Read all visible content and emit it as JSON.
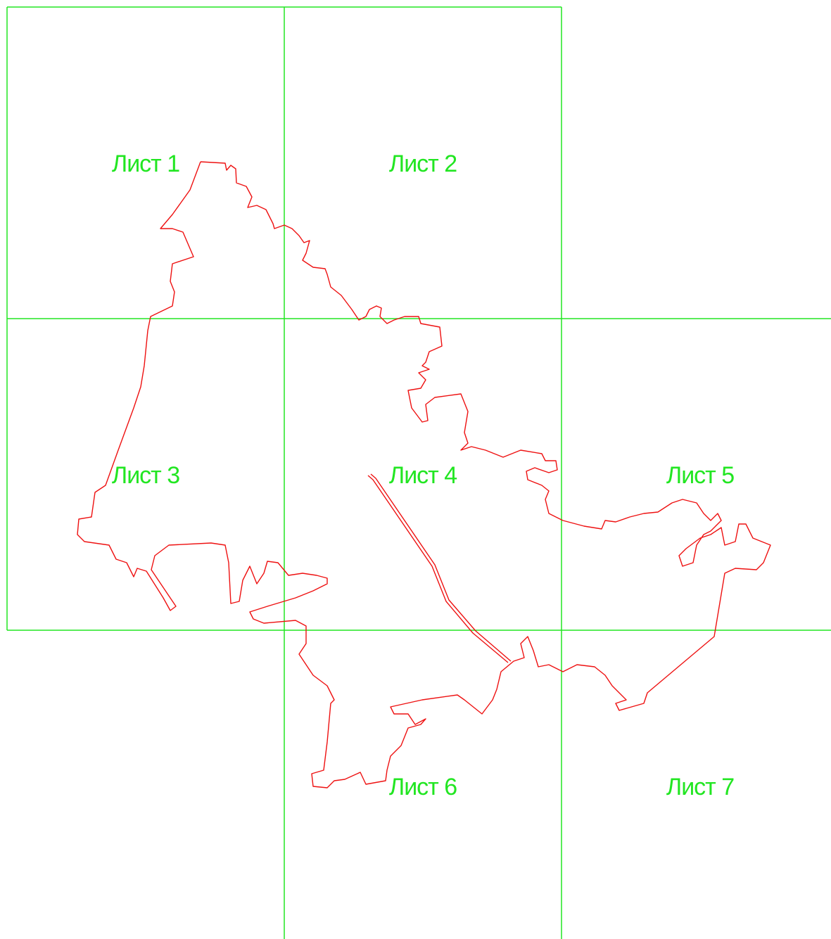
{
  "sheets": [
    {
      "label": "Лист 1"
    },
    {
      "label": "Лист 2"
    },
    {
      "label": "Лист 3"
    },
    {
      "label": "Лист 4"
    },
    {
      "label": "Лист 5"
    },
    {
      "label": "Лист 6"
    },
    {
      "label": "Лист 7"
    }
  ]
}
